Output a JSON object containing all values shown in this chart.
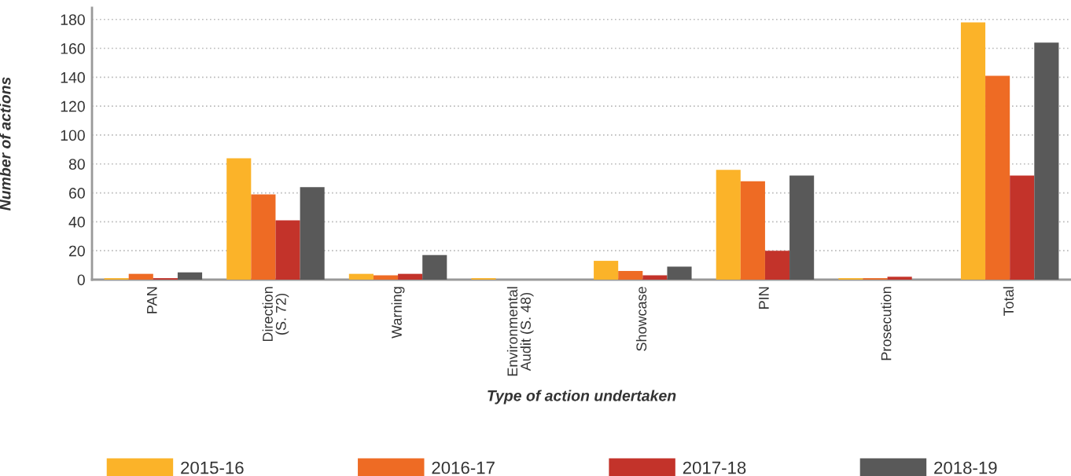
{
  "chart_data": {
    "type": "bar",
    "xlabel": "Type of action undertaken",
    "ylabel": "Number of actions",
    "categories": [
      "PAN",
      "Direction\n(S. 72)",
      "Warning",
      "Environmental\nAudit (S. 48)",
      "Showcase",
      "PIN",
      "Prosecution",
      "Total"
    ],
    "series": [
      {
        "name": "2015-16",
        "color": "#fbb329",
        "values": [
          1,
          84,
          4,
          1,
          13,
          76,
          1,
          178
        ]
      },
      {
        "name": "2016-17",
        "color": "#ee6b24",
        "values": [
          4,
          59,
          3,
          0,
          6,
          68,
          1,
          141
        ]
      },
      {
        "name": "2017-18",
        "color": "#c3332a",
        "values": [
          1,
          41,
          4,
          0,
          3,
          20,
          2,
          72
        ]
      },
      {
        "name": "2018-19",
        "color": "#595959",
        "values": [
          5,
          64,
          17,
          0,
          9,
          72,
          0,
          164
        ]
      }
    ],
    "ylim": [
      0,
      188
    ],
    "yticks": [
      0,
      20,
      40,
      60,
      80,
      100,
      120,
      140,
      160,
      180
    ],
    "grid": "y",
    "legend": "bottom"
  }
}
